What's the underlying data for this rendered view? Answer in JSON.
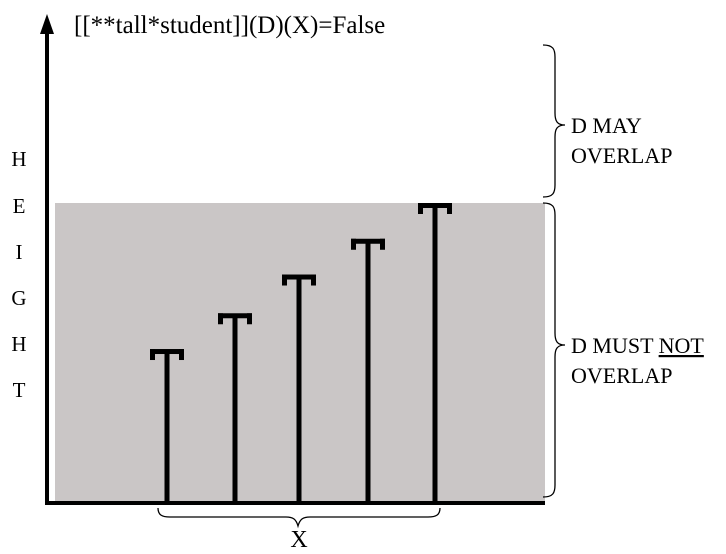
{
  "title": "[[**tall*student]](D)(X)=False",
  "y_axis_letters": [
    "H",
    "E",
    "I",
    "G",
    "H",
    "T"
  ],
  "x_label": "X",
  "upper_region": {
    "line1": "D MAY",
    "line2": "OVERLAP"
  },
  "lower_region": {
    "line1_prefix": "D MUST ",
    "line1_underlined": "NOT",
    "line2": "OVERLAP"
  },
  "colors": {
    "shaded_region": "#cac6c6",
    "ink": "#000000",
    "background": "#ffffff"
  },
  "bar_heights": [
    0.51,
    0.63,
    0.76,
    0.88,
    1.0
  ]
}
